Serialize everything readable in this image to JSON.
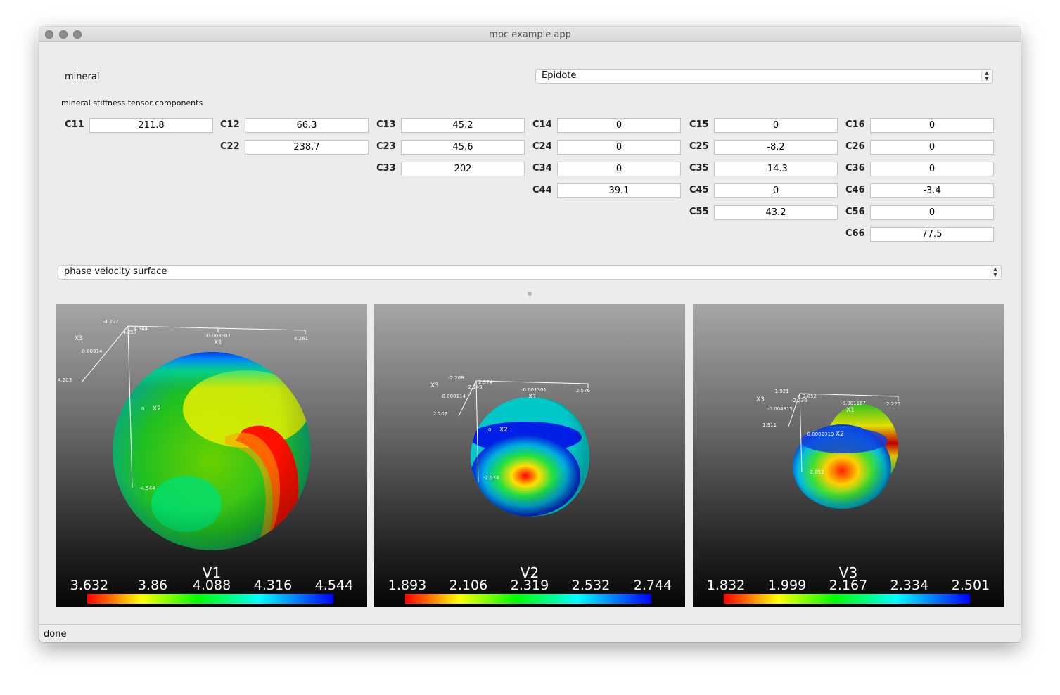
{
  "window": {
    "title": "mpc example app"
  },
  "mineral": {
    "label": "mineral",
    "selected": "Epidote"
  },
  "tensor": {
    "heading": "mineral stiffness tensor components",
    "cells": [
      {
        "name": "C11",
        "value": "211.8",
        "row": 0,
        "col": 0
      },
      {
        "name": "C12",
        "value": "66.3",
        "row": 0,
        "col": 1
      },
      {
        "name": "C13",
        "value": "45.2",
        "row": 0,
        "col": 2
      },
      {
        "name": "C14",
        "value": "0",
        "row": 0,
        "col": 3
      },
      {
        "name": "C15",
        "value": "0",
        "row": 0,
        "col": 4
      },
      {
        "name": "C16",
        "value": "0",
        "row": 0,
        "col": 5
      },
      {
        "name": "C22",
        "value": "238.7",
        "row": 1,
        "col": 1
      },
      {
        "name": "C23",
        "value": "45.6",
        "row": 1,
        "col": 2
      },
      {
        "name": "C24",
        "value": "0",
        "row": 1,
        "col": 3
      },
      {
        "name": "C25",
        "value": "-8.2",
        "row": 1,
        "col": 4
      },
      {
        "name": "C26",
        "value": "0",
        "row": 1,
        "col": 5
      },
      {
        "name": "C33",
        "value": "202",
        "row": 2,
        "col": 2
      },
      {
        "name": "C34",
        "value": "0",
        "row": 2,
        "col": 3
      },
      {
        "name": "C35",
        "value": "-14.3",
        "row": 2,
        "col": 4
      },
      {
        "name": "C36",
        "value": "0",
        "row": 2,
        "col": 5
      },
      {
        "name": "C44",
        "value": "39.1",
        "row": 3,
        "col": 3
      },
      {
        "name": "C45",
        "value": "0",
        "row": 3,
        "col": 4
      },
      {
        "name": "C46",
        "value": "-3.4",
        "row": 3,
        "col": 5
      },
      {
        "name": "C55",
        "value": "43.2",
        "row": 4,
        "col": 4
      },
      {
        "name": "C56",
        "value": "0",
        "row": 4,
        "col": 5
      },
      {
        "name": "C66",
        "value": "77.5",
        "row": 5,
        "col": 5
      }
    ]
  },
  "plot_mode": {
    "selected": "phase velocity surface"
  },
  "views": [
    {
      "title": "V1",
      "ticks": [
        "3.632",
        "3.86",
        "4.088",
        "4.316",
        "4.544"
      ],
      "axes": {
        "x3": "X3",
        "x2": "X2",
        "x1": "X1",
        "t1": "-4.207",
        "t2": "-4.257",
        "t3": "4.544",
        "t4": "-0.00314",
        "t5": "-0.003007",
        "t6": "4.261",
        "t7": "4.203",
        "t8": "0",
        "t9": "-4.544"
      }
    },
    {
      "title": "V2",
      "ticks": [
        "1.893",
        "2.106",
        "2.319",
        "2.532",
        "2.744"
      ],
      "axes": {
        "x3": "X3",
        "x2": "X2",
        "x1": "X1",
        "t1": "-2.208",
        "t2": "-2.249",
        "t3": "2.574",
        "t4": "-0.000114",
        "t5": "-0.001301",
        "t6": "2.576",
        "t7": "2.207",
        "t8": "0",
        "t9": "-2.574"
      }
    },
    {
      "title": "V3",
      "ticks": [
        "1.832",
        "1.999",
        "2.167",
        "2.334",
        "2.501"
      ],
      "axes": {
        "x3": "X3",
        "x2": "X2",
        "x1": "X1",
        "t1": "-1.921",
        "t2": "-2.236",
        "t3": "2.052",
        "t4": "-0.004815",
        "t5": "-0.001167",
        "t6": "2.225",
        "t7": "1.911",
        "t8": "-0.0002319",
        "t9": "-2.051"
      }
    }
  ],
  "status": "done"
}
